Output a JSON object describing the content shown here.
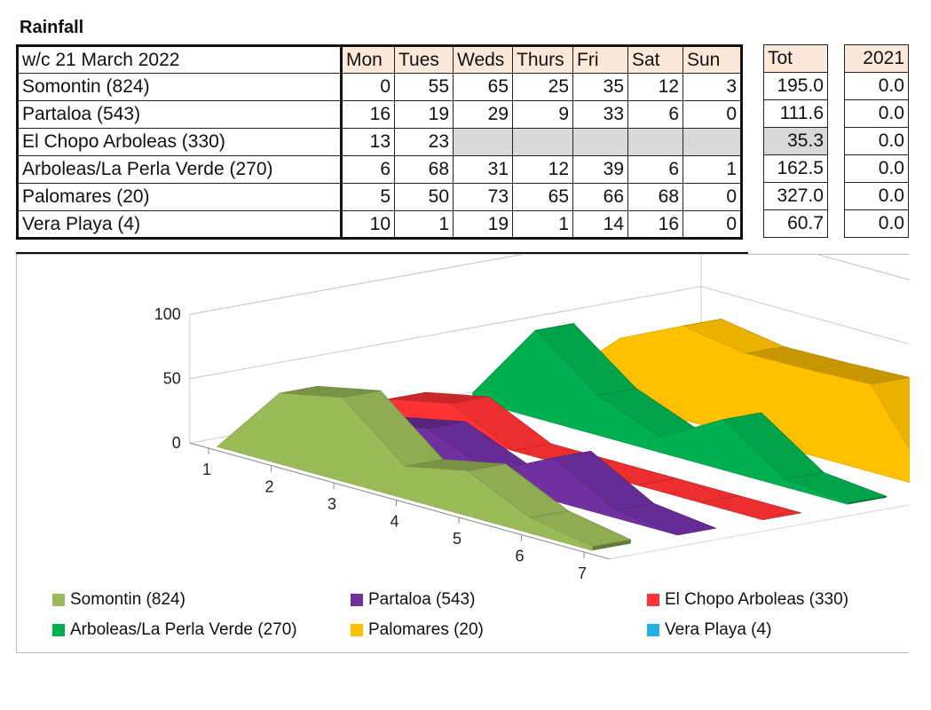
{
  "sheet": {
    "title": "Rainfall"
  },
  "table": {
    "week_label": "w/c 21 March 2022",
    "days": [
      "Mon",
      "Tues",
      "Weds",
      "Thurs",
      "Fri",
      "Sat",
      "Sun"
    ],
    "tot_label": "Tot",
    "year_label": "2021",
    "rows": [
      {
        "name": "Somontin (824)",
        "vals": [
          "0",
          "55",
          "65",
          "25",
          "35",
          "12",
          "3"
        ],
        "tot": "195.0",
        "y2021": "0.0"
      },
      {
        "name": "Partaloa (543)",
        "vals": [
          "16",
          "19",
          "29",
          "9",
          "33",
          "6",
          "0"
        ],
        "tot": "111.6",
        "y2021": "0.0"
      },
      {
        "name": "El Chopo Arboleas (330)",
        "vals": [
          "13",
          "23",
          "",
          "",
          "",
          "",
          ""
        ],
        "tot": "35.3",
        "y2021": "0.0"
      },
      {
        "name": "Arboleas/La Perla Verde (270)",
        "vals": [
          "6",
          "68",
          "31",
          "12",
          "39",
          "6",
          "1"
        ],
        "tot": "162.5",
        "y2021": "0.0"
      },
      {
        "name": "Palomares (20)",
        "vals": [
          "5",
          "50",
          "73",
          "65",
          "66",
          "68",
          "0"
        ],
        "tot": "327.0",
        "y2021": "0.0"
      },
      {
        "name": "Vera Playa (4)",
        "vals": [
          "10",
          "1",
          "19",
          "1",
          "14",
          "16",
          "0"
        ],
        "tot": "60.7",
        "y2021": "0.0"
      }
    ]
  },
  "chart_data": {
    "type": "area",
    "subtype": "3d-area",
    "title": "",
    "x": [
      1,
      2,
      3,
      4,
      5,
      6,
      7
    ],
    "xticklabels": [
      "1",
      "2",
      "3",
      "4",
      "5",
      "6",
      "7"
    ],
    "yticks": [
      0,
      50,
      100
    ],
    "ylim": [
      0,
      100
    ],
    "legend_position": "bottom",
    "series": [
      {
        "name": "Somontin (824)",
        "color": "#9bbb59",
        "values": [
          0,
          55,
          65,
          25,
          35,
          12,
          3
        ]
      },
      {
        "name": "Partaloa (543)",
        "color": "#7030a0",
        "values": [
          16,
          19,
          29,
          9,
          33,
          6,
          0
        ]
      },
      {
        "name": "El Chopo Arboleas (330)",
        "color": "#ff3333",
        "values": [
          13,
          23,
          0,
          0,
          0,
          0,
          0
        ]
      },
      {
        "name": "Arboleas/La Perla Verde (270)",
        "color": "#00b050",
        "values": [
          6,
          68,
          31,
          12,
          39,
          6,
          1
        ]
      },
      {
        "name": "Palomares (20)",
        "color": "#ffc000",
        "values": [
          5,
          50,
          73,
          65,
          66,
          68,
          0
        ]
      },
      {
        "name": "Vera Playa (4)",
        "color": "#1fb0e0",
        "values": [
          10,
          1,
          19,
          1,
          14,
          16,
          0
        ]
      }
    ]
  }
}
